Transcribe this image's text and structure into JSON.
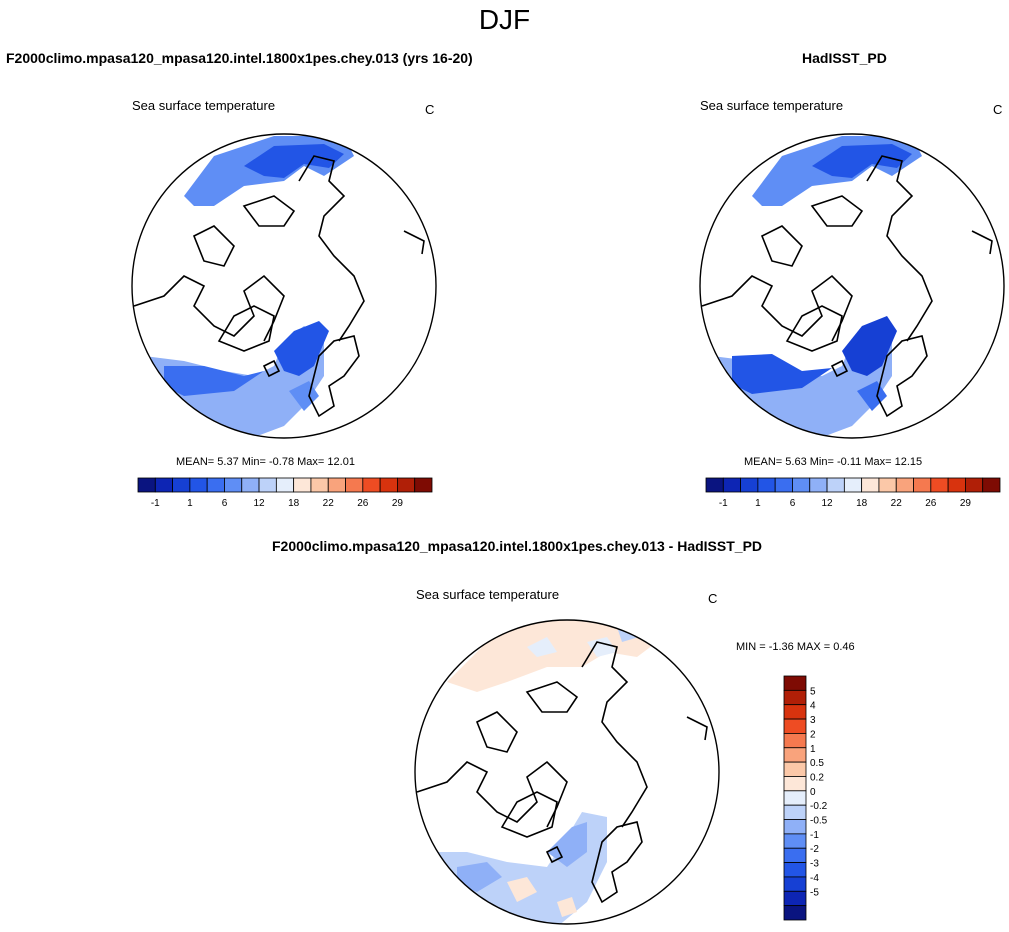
{
  "title": "DJF",
  "panels": [
    {
      "header": "F2000climo.mpasa120_mpasa120.intel.1800x1pes.chey.013 (yrs 16-20)",
      "subtitle": "Sea surface temperature",
      "units": "C",
      "mean_label": "MEAN=",
      "mean": "5.37",
      "min_label": "Min=",
      "min": "-0.78",
      "max_label": "Max=",
      "max": "12.01"
    },
    {
      "header": "HadISST_PD",
      "subtitle": "Sea surface temperature",
      "units": "C",
      "mean_label": "MEAN=",
      "mean": "5.63",
      "min_label": "Min=",
      "min": "-0.11",
      "max_label": "Max=",
      "max": "12.15"
    },
    {
      "header": "F2000climo.mpasa120_mpasa120.intel.1800x1pes.chey.013 - HadISST_PD",
      "subtitle": "Sea surface temperature",
      "units": "C",
      "minmax": "MIN =  -1.36 MAX =   0.46"
    }
  ],
  "colorbar_top": {
    "colors": [
      "#0a1480",
      "#0d25b4",
      "#1640d4",
      "#2255e6",
      "#3a6ef0",
      "#5f8ef5",
      "#8fb0f7",
      "#bdd2f9",
      "#e5eefb",
      "#fde7d8",
      "#fbc8a8",
      "#f9a37c",
      "#f5794f",
      "#ee4c23",
      "#d8330e",
      "#b01f07",
      "#7e0b03"
    ],
    "ticks": [
      "-1",
      "1",
      "6",
      "12",
      "18",
      "22",
      "26",
      "29"
    ]
  },
  "colorbar_diff": {
    "colors": [
      "#7e0b03",
      "#b01f07",
      "#d8330e",
      "#ee4c23",
      "#f5794f",
      "#f9a37c",
      "#fbc8a8",
      "#fde7d8",
      "#e5eefb",
      "#bdd2f9",
      "#8fb0f7",
      "#5f8ef5",
      "#3a6ef0",
      "#2255e6",
      "#1640d4",
      "#0d25b4",
      "#0a1480"
    ],
    "ticks": [
      "5",
      "4",
      "3",
      "2",
      "1",
      "0.5",
      "0.2",
      "0",
      "-0.2",
      "-0.5",
      "-1",
      "-2",
      "-3",
      "-4",
      "-5"
    ]
  }
}
